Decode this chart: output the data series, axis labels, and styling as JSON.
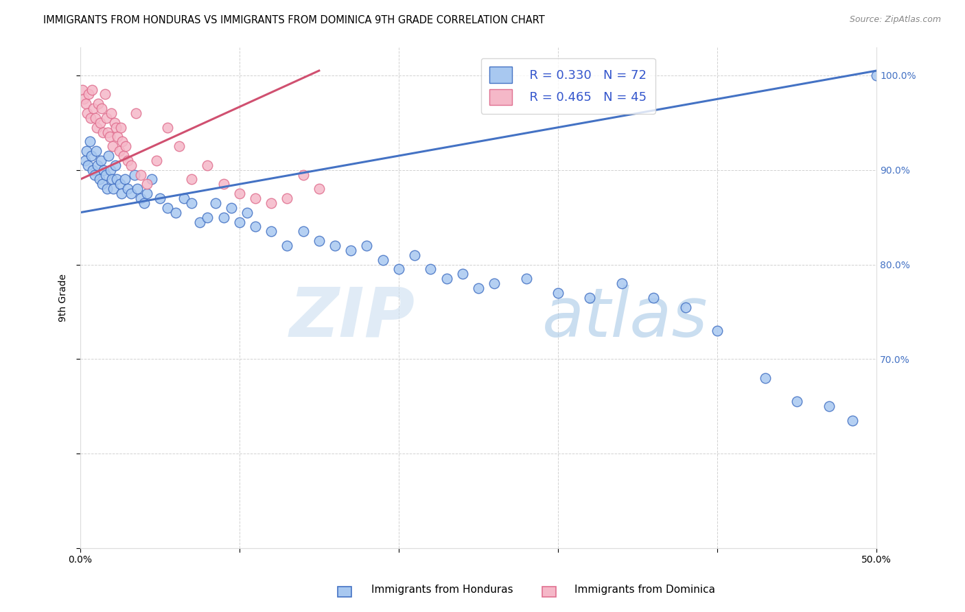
{
  "title": "IMMIGRANTS FROM HONDURAS VS IMMIGRANTS FROM DOMINICA 9TH GRADE CORRELATION CHART",
  "source": "Source: ZipAtlas.com",
  "ylabel": "9th Grade",
  "x_min": 0.0,
  "x_max": 50.0,
  "y_min": 50.0,
  "y_max": 103.0,
  "color_honduras": "#a8c8f0",
  "color_dominica": "#f5b8c8",
  "color_honduras_edge": "#4472c4",
  "color_dominica_edge": "#e07090",
  "color_honduras_line": "#4472c4",
  "color_dominica_line": "#d05070",
  "color_legend_text": "#3355cc",
  "background": "#ffffff",
  "grid_color": "#cccccc",
  "honduras_x": [
    0.3,
    0.4,
    0.5,
    0.6,
    0.7,
    0.8,
    0.9,
    1.0,
    1.1,
    1.2,
    1.3,
    1.4,
    1.5,
    1.6,
    1.7,
    1.8,
    1.9,
    2.0,
    2.1,
    2.2,
    2.3,
    2.5,
    2.6,
    2.8,
    3.0,
    3.2,
    3.4,
    3.6,
    3.8,
    4.0,
    4.2,
    4.5,
    5.0,
    5.5,
    6.0,
    6.5,
    7.0,
    7.5,
    8.0,
    8.5,
    9.0,
    9.5,
    10.0,
    10.5,
    11.0,
    12.0,
    13.0,
    14.0,
    15.0,
    16.0,
    17.0,
    18.0,
    19.0,
    20.0,
    21.0,
    22.0,
    23.0,
    24.0,
    25.0,
    26.0,
    28.0,
    30.0,
    32.0,
    34.0,
    36.0,
    38.0,
    40.0,
    43.0,
    45.0,
    47.0,
    48.5,
    50.0
  ],
  "honduras_y": [
    91.0,
    92.0,
    90.5,
    93.0,
    91.5,
    90.0,
    89.5,
    92.0,
    90.5,
    89.0,
    91.0,
    88.5,
    90.0,
    89.5,
    88.0,
    91.5,
    90.0,
    89.0,
    88.0,
    90.5,
    89.0,
    88.5,
    87.5,
    89.0,
    88.0,
    87.5,
    89.5,
    88.0,
    87.0,
    86.5,
    87.5,
    89.0,
    87.0,
    86.0,
    85.5,
    87.0,
    86.5,
    84.5,
    85.0,
    86.5,
    85.0,
    86.0,
    84.5,
    85.5,
    84.0,
    83.5,
    82.0,
    83.5,
    82.5,
    82.0,
    81.5,
    82.0,
    80.5,
    79.5,
    81.0,
    79.5,
    78.5,
    79.0,
    77.5,
    78.0,
    78.5,
    77.0,
    76.5,
    78.0,
    76.5,
    75.5,
    73.0,
    68.0,
    65.5,
    65.0,
    63.5,
    100.0
  ],
  "dominica_x": [
    0.15,
    0.25,
    0.35,
    0.45,
    0.55,
    0.65,
    0.75,
    0.85,
    0.95,
    1.05,
    1.15,
    1.25,
    1.35,
    1.45,
    1.55,
    1.65,
    1.75,
    1.85,
    1.95,
    2.05,
    2.15,
    2.25,
    2.35,
    2.45,
    2.55,
    2.65,
    2.75,
    2.85,
    3.0,
    3.2,
    3.5,
    3.8,
    4.2,
    4.8,
    5.5,
    6.2,
    7.0,
    8.0,
    9.0,
    10.0,
    11.0,
    12.0,
    13.0,
    14.0,
    15.0
  ],
  "dominica_y": [
    98.5,
    97.5,
    97.0,
    96.0,
    98.0,
    95.5,
    98.5,
    96.5,
    95.5,
    94.5,
    97.0,
    95.0,
    96.5,
    94.0,
    98.0,
    95.5,
    94.0,
    93.5,
    96.0,
    92.5,
    95.0,
    94.5,
    93.5,
    92.0,
    94.5,
    93.0,
    91.5,
    92.5,
    91.0,
    90.5,
    96.0,
    89.5,
    88.5,
    91.0,
    94.5,
    92.5,
    89.0,
    90.5,
    88.5,
    87.5,
    87.0,
    86.5,
    87.0,
    89.5,
    88.0
  ]
}
